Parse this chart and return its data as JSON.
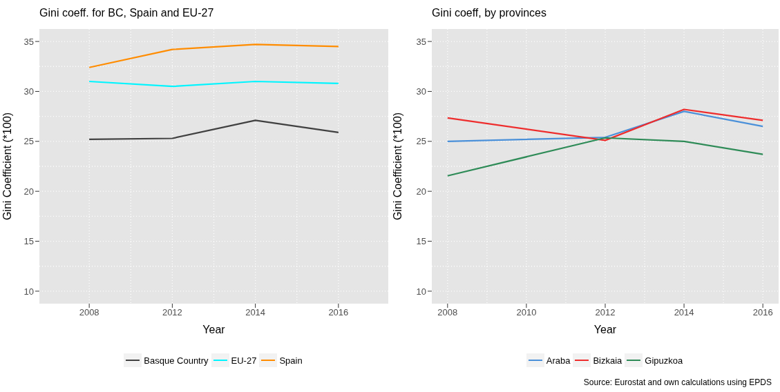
{
  "chart_data": [
    {
      "type": "line",
      "title": "Gini coeff. for BC, Spain and EU-27",
      "xlabel": "Year",
      "ylabel": "Gini Coefficient (*100)",
      "categories": [
        "2008",
        "2012",
        "2014",
        "2016"
      ],
      "ylim": [
        8.75,
        36.25
      ],
      "yticks": [
        10,
        15,
        20,
        25,
        30,
        35
      ],
      "grid": true,
      "legend": "bottom",
      "series": [
        {
          "name": "Basque Country",
          "color": "#404040",
          "values": [
            25.2,
            25.3,
            27.1,
            25.9
          ]
        },
        {
          "name": "EU-27",
          "color": "#00f5ff",
          "values": [
            31.0,
            30.5,
            31.0,
            30.8
          ]
        },
        {
          "name": "Spain",
          "color": "#ff8c00",
          "values": [
            32.4,
            34.2,
            34.7,
            34.5
          ]
        }
      ]
    },
    {
      "type": "line",
      "title": "Gini coeff, by provinces",
      "xlabel": "Year",
      "ylabel": "Gini Coefficient (*100)",
      "x": [
        2008,
        2012,
        2014,
        2016
      ],
      "xlim": [
        2007.6,
        2016.4
      ],
      "xticks": [
        2008,
        2010,
        2012,
        2014,
        2016
      ],
      "ylim": [
        8.75,
        36.25
      ],
      "yticks": [
        10,
        15,
        20,
        25,
        30,
        35
      ],
      "grid": true,
      "legend": "bottom",
      "series": [
        {
          "name": "Araba",
          "color": "#4a90d9",
          "values": [
            25.0,
            25.4,
            28.0,
            26.5
          ]
        },
        {
          "name": "Bizkaia",
          "color": "#ee2c2c",
          "values": [
            27.35,
            25.1,
            28.2,
            27.1
          ]
        },
        {
          "name": "Gipuzkoa",
          "color": "#2e8b57",
          "values": [
            21.55,
            25.35,
            25.0,
            23.7
          ]
        }
      ],
      "annotations": [
        "Source: Eurostat and own calculations using EPDS"
      ]
    }
  ]
}
